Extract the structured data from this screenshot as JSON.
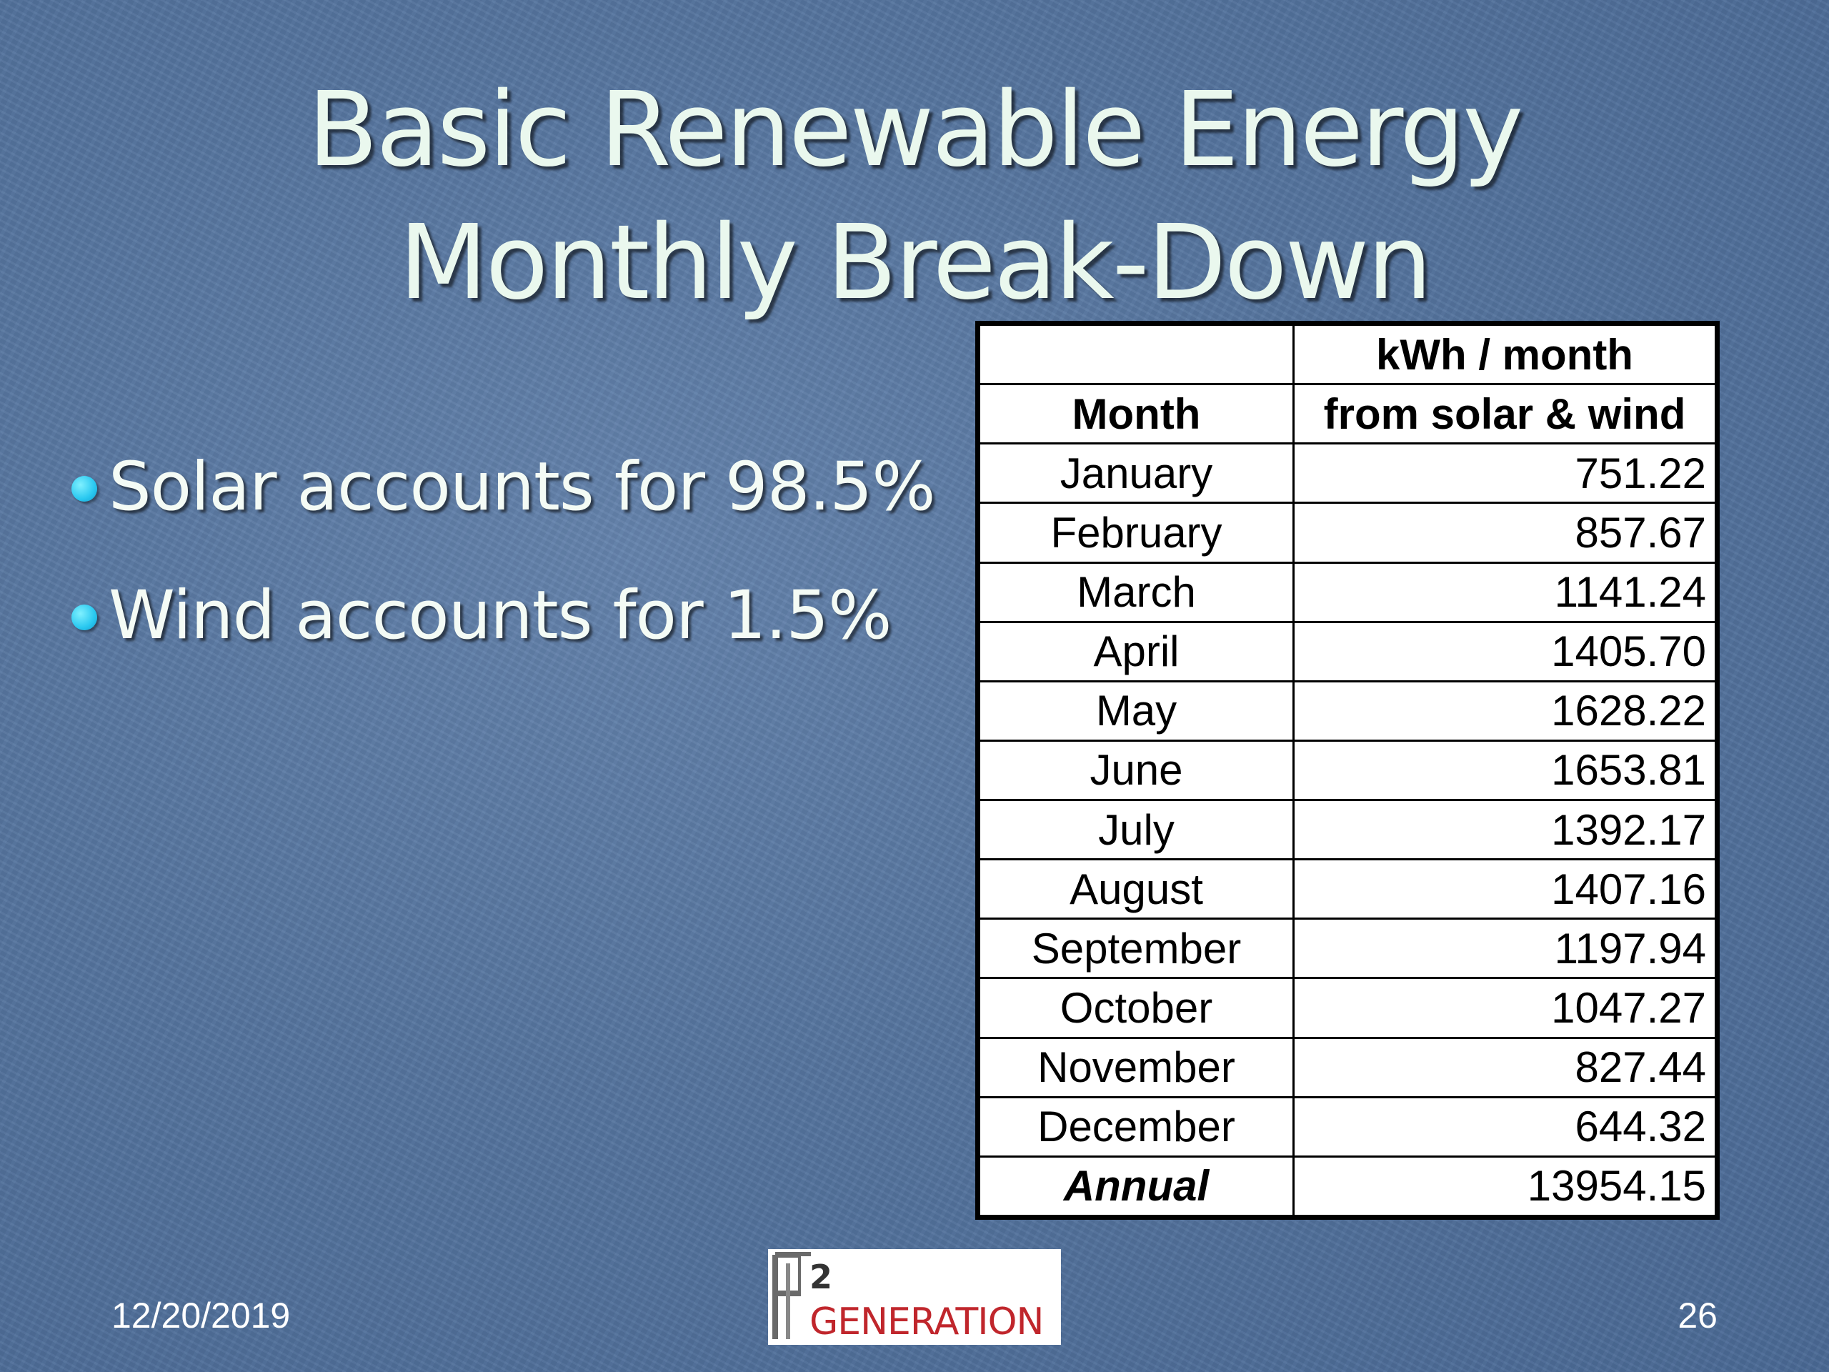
{
  "slide": {
    "title_line1": "Basic Renewable Energy",
    "title_line2": "Monthly Break-Down",
    "bullets": [
      "Solar accounts for 98.5%",
      "Wind accounts for 1.5%"
    ],
    "bullet_icon": "cyan-dot-bullet-icon",
    "footer_date": "12/20/2019",
    "page_number": "26",
    "logo_text": "H2 GENERATION"
  },
  "table": {
    "header_col1": "Month",
    "header_col2_line1": "kWh / month",
    "header_col2_line2": "from solar & wind",
    "rows": [
      {
        "month": "January",
        "value": "751.22"
      },
      {
        "month": "February",
        "value": "857.67"
      },
      {
        "month": "March",
        "value": "1141.24"
      },
      {
        "month": "April",
        "value": "1405.70"
      },
      {
        "month": "May",
        "value": "1628.22"
      },
      {
        "month": "June",
        "value": "1653.81"
      },
      {
        "month": "July",
        "value": "1392.17"
      },
      {
        "month": "August",
        "value": "1407.16"
      },
      {
        "month": "September",
        "value": "1197.94"
      },
      {
        "month": "October",
        "value": "1047.27"
      },
      {
        "month": "November",
        "value": "827.44"
      },
      {
        "month": "December",
        "value": "644.32"
      }
    ],
    "annual_label": "Annual",
    "annual_value": "13954.15"
  },
  "colors": {
    "background": "#56759f",
    "title_text": "#eaf8ee",
    "bullet_dot": "#29c8f0",
    "logo_red": "#c0262c"
  }
}
